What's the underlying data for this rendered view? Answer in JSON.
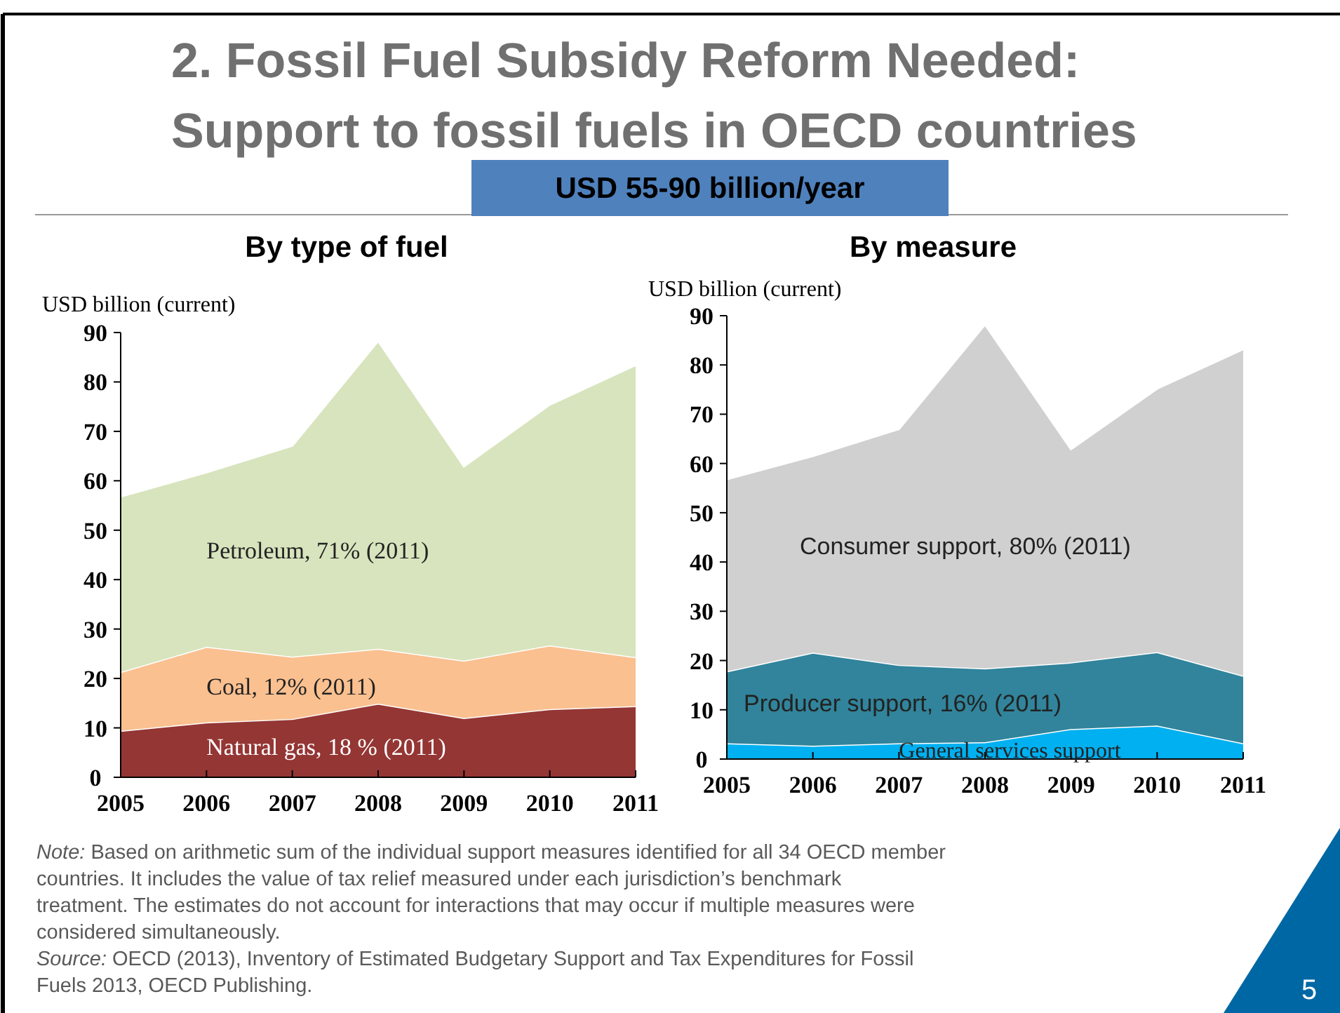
{
  "chart_data": [
    {
      "type": "area",
      "stacked": true,
      "title": "By type of fuel",
      "ylabel": "USD billion (current)",
      "x": [
        2005,
        2006,
        2007,
        2008,
        2009,
        2010,
        2011
      ],
      "xlim": [
        2005,
        2011
      ],
      "xticks": [
        2005,
        2006,
        2007,
        2008,
        2009,
        2010,
        2011
      ],
      "ylim": [
        0,
        90
      ],
      "yticks": [
        0,
        10,
        20,
        30,
        40,
        50,
        60,
        70,
        80,
        90
      ],
      "grid": false,
      "series": [
        {
          "name": "Natural gas, 18 % (2011)",
          "color": "#943634",
          "values": [
            9.4,
            11.1,
            11.8,
            14.9,
            12.0,
            13.8,
            14.4
          ]
        },
        {
          "name": "Coal, 12% (2011)",
          "color": "#fac090",
          "values": [
            11.9,
            15.3,
            12.6,
            11.1,
            11.6,
            12.9,
            9.9
          ]
        },
        {
          "name": "Petroleum, 71% (2011)",
          "color": "#d7e4bd",
          "values": [
            35.5,
            35.3,
            42.7,
            62.3,
            39.3,
            48.7,
            59.1
          ]
        }
      ],
      "annotations": [
        "2. Fossil Fuel Subsidy Reform Needed:",
        "Support to fossil fuels in OECD countries",
        "USD 55-90 billion/year",
        "Note: Based on arithmetic sum of the individual support measures identified for all 34 OECD member countries. It includes the value of tax relief measured under each jurisdiction’s benchmark treatment. The estimates do not account for interactions that may occur if multiple measures were considered simultaneously.",
        "Source: OECD (2013), Inventory of Estimated Budgetary Support and Tax Expenditures for Fossil Fuels 2013, OECD Publishing.",
        "5"
      ]
    },
    {
      "type": "area",
      "stacked": true,
      "title": "By measure",
      "ylabel": "USD billion (current)",
      "x": [
        2005,
        2006,
        2007,
        2008,
        2009,
        2010,
        2011
      ],
      "xlim": [
        2005,
        2011
      ],
      "xticks": [
        2005,
        2006,
        2007,
        2008,
        2009,
        2010,
        2011
      ],
      "ylim": [
        0,
        90
      ],
      "yticks": [
        0,
        10,
        20,
        30,
        40,
        50,
        60,
        70,
        80,
        90
      ],
      "grid": false,
      "series": [
        {
          "name": "General services support",
          "color": "#00b0f0",
          "values": [
            3.2,
            2.7,
            3.2,
            3.4,
            6.1,
            6.8,
            3.2
          ]
        },
        {
          "name": "Producer support, 16% (2011)",
          "color": "#31849b",
          "values": [
            14.6,
            18.9,
            15.9,
            15.0,
            13.5,
            14.9,
            13.7
          ]
        },
        {
          "name": "Consumer support, 80% (2011)",
          "color": "#d0d0d0",
          "values": [
            39.0,
            39.9,
            47.9,
            69.8,
            43.3,
            53.5,
            66.3
          ]
        }
      ]
    }
  ]
}
